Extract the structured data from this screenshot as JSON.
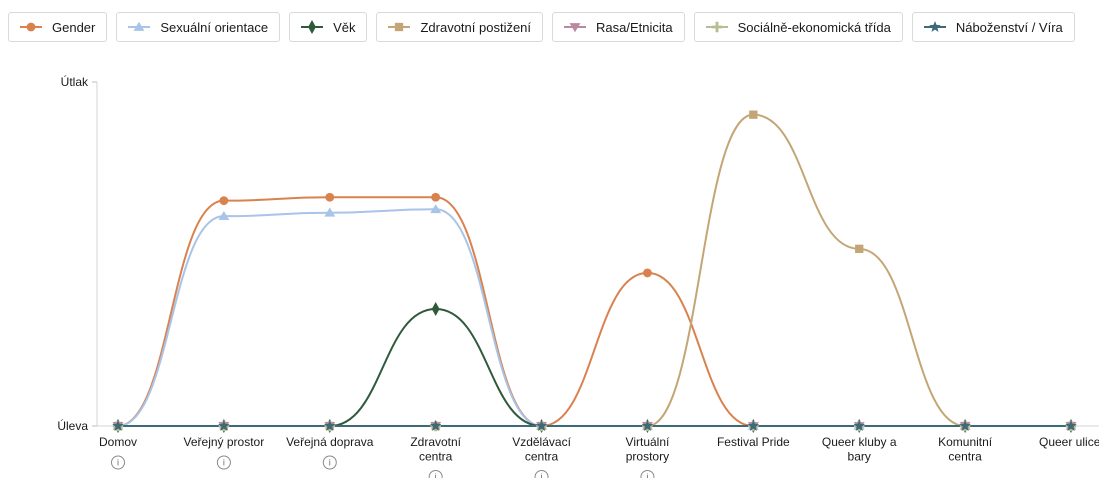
{
  "chart_data": {
    "type": "line",
    "y_tick_labels": [
      "Úleva",
      "Útlak"
    ],
    "ylim": [
      0,
      1
    ],
    "categories": [
      [
        "Domov"
      ],
      [
        "Veřejný prostor"
      ],
      [
        "Veřejná doprava"
      ],
      [
        "Zdravotní",
        "centra"
      ],
      [
        "Vzdělávací",
        "centra"
      ],
      [
        "Virtuální",
        "prostory"
      ],
      [
        "Festival Pride"
      ],
      [
        "Queer kluby a",
        "bary"
      ],
      [
        "Komunitní",
        "centra"
      ],
      [
        "Queer ulice"
      ]
    ],
    "info_icons": [
      true,
      true,
      true,
      true,
      true,
      true,
      false,
      false,
      false,
      false
    ],
    "series": [
      {
        "name": "Gender",
        "color": "#d9824f",
        "marker": "circle",
        "values": [
          0,
          0.655,
          0.665,
          0.665,
          0,
          0.445,
          0,
          0,
          0,
          0
        ]
      },
      {
        "name": "Sexuální orientace",
        "color": "#a8c4e6",
        "marker": "triangle",
        "values": [
          0,
          0.61,
          0.62,
          0.63,
          0,
          0,
          0,
          0,
          0,
          0
        ]
      },
      {
        "name": "Věk",
        "color": "#2f5a3c",
        "marker": "diamond",
        "values": [
          0,
          0,
          0,
          0.34,
          0,
          0,
          0,
          0,
          0,
          0
        ]
      },
      {
        "name": "Zdravotní postižení",
        "color": "#c4a676",
        "marker": "square",
        "values": [
          0,
          0,
          0,
          0,
          0,
          0,
          0.905,
          0.515,
          0,
          0
        ]
      },
      {
        "name": "Rasa/Etnicita",
        "color": "#b889a0",
        "marker": "triangle-down",
        "values": [
          0,
          0,
          0,
          0,
          0,
          0,
          0,
          0,
          0,
          0
        ]
      },
      {
        "name": "Sociálně-ekonomická třída",
        "color": "#b6bd93",
        "marker": "plus",
        "values": [
          0,
          0,
          0,
          0,
          0,
          0,
          0,
          0,
          0,
          0
        ]
      },
      {
        "name": "Náboženství / Víra",
        "color": "#3d6a78",
        "marker": "star",
        "values": [
          0,
          0,
          0,
          0,
          0,
          0,
          0,
          0,
          0,
          0
        ]
      }
    ],
    "legend_position": "top"
  }
}
